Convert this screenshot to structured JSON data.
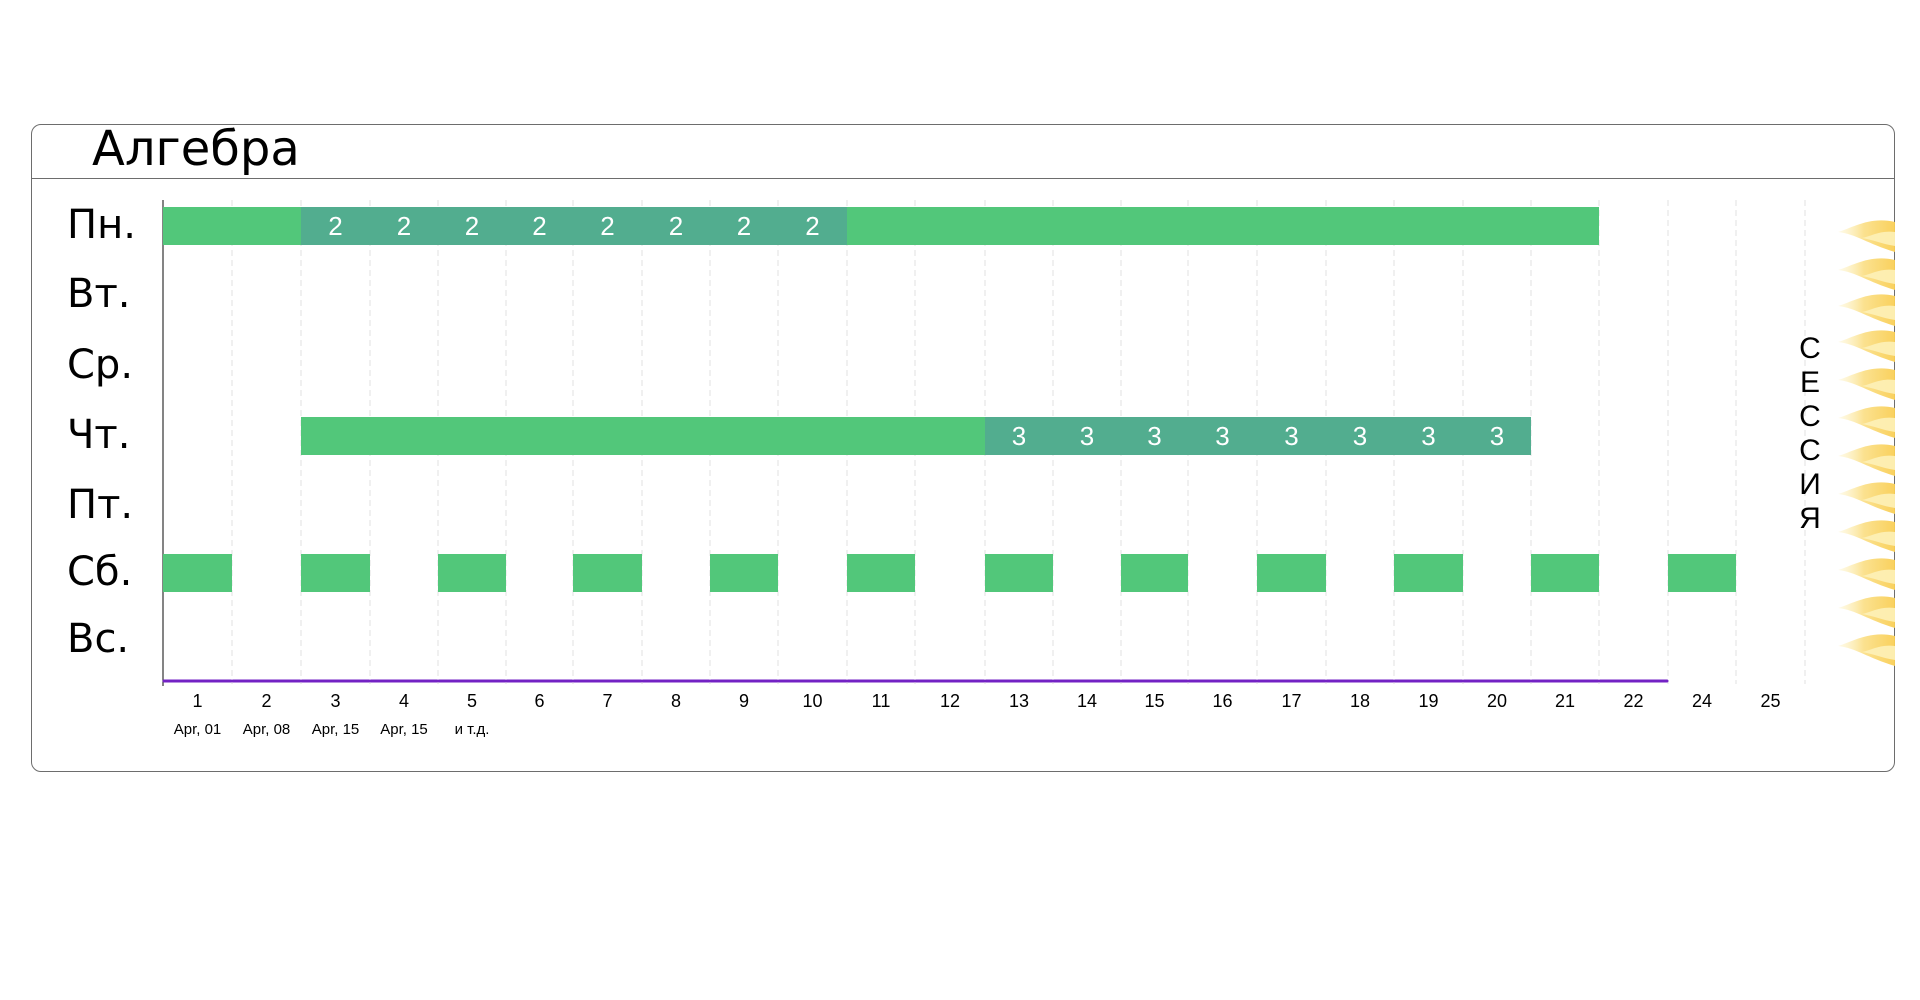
{
  "chart_data": {
    "type": "gantt",
    "title": "Алгебра",
    "days": [
      "Пн.",
      "Вт.",
      "Ср.",
      "Чт.",
      "Пт.",
      "Сб.",
      "Вс."
    ],
    "weeks": [
      "1",
      "2",
      "3",
      "4",
      "5",
      "6",
      "7",
      "8",
      "9",
      "10",
      "11",
      "12",
      "13",
      "14",
      "15",
      "16",
      "17",
      "18",
      "19",
      "20",
      "21",
      "22",
      "24",
      "25"
    ],
    "date_labels": [
      {
        "week": 1,
        "text": "Apr, 01"
      },
      {
        "week": 2,
        "text": "Apr, 08"
      },
      {
        "week": 3,
        "text": "Apr, 15"
      },
      {
        "week": 4,
        "text": "Apr, 15"
      },
      {
        "week": 5,
        "text": "и т.д."
      }
    ],
    "tasks": [
      {
        "day": "Пн.",
        "weeks": [
          1,
          2,
          3,
          4,
          5,
          6,
          7,
          8,
          9,
          10,
          11,
          12,
          13,
          14,
          15,
          16,
          17,
          18,
          19,
          20,
          21
        ],
        "labeled": {
          "3": "2",
          "4": "2",
          "5": "2",
          "6": "2",
          "7": "2",
          "8": "2",
          "9": "2",
          "10": "2"
        }
      },
      {
        "day": "Чт.",
        "weeks": [
          3,
          4,
          5,
          6,
          7,
          8,
          9,
          10,
          11,
          12,
          13,
          14,
          15,
          16,
          17,
          18,
          19,
          20
        ],
        "labeled": {
          "13": "3",
          "14": "3",
          "15": "3",
          "16": "3",
          "17": "3",
          "18": "3",
          "19": "3",
          "20": "3"
        }
      },
      {
        "day": "Сб.",
        "weeks": [
          1,
          3,
          5,
          7,
          9,
          11,
          13,
          15,
          17,
          19,
          21,
          23
        ],
        "labeled": {}
      }
    ],
    "timeline_weeks": 22,
    "side_label": [
      "С",
      "Е",
      "С",
      "С",
      "И",
      "Я"
    ],
    "colors": {
      "bar": "#52c77a",
      "bar_labeled": "#52ad8f",
      "timeline": "#7322c4",
      "grid": "#e2e2e2",
      "flame_outer": "#f9ce54",
      "flame_inner": "#fdf1b8"
    }
  }
}
